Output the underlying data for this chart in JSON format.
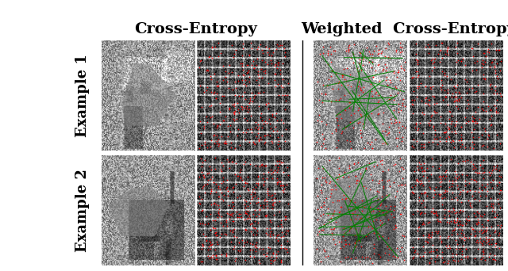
{
  "title_left": "Cross-Entropy",
  "title_right": "Weighted  Cross-Entropy",
  "row_labels": [
    "Example 1",
    "Example 2"
  ],
  "background_color": "#ffffff",
  "panel_bg": "#000000",
  "title_fontsize": 14,
  "label_fontsize": 13,
  "fig_width": 6.4,
  "fig_height": 3.42
}
